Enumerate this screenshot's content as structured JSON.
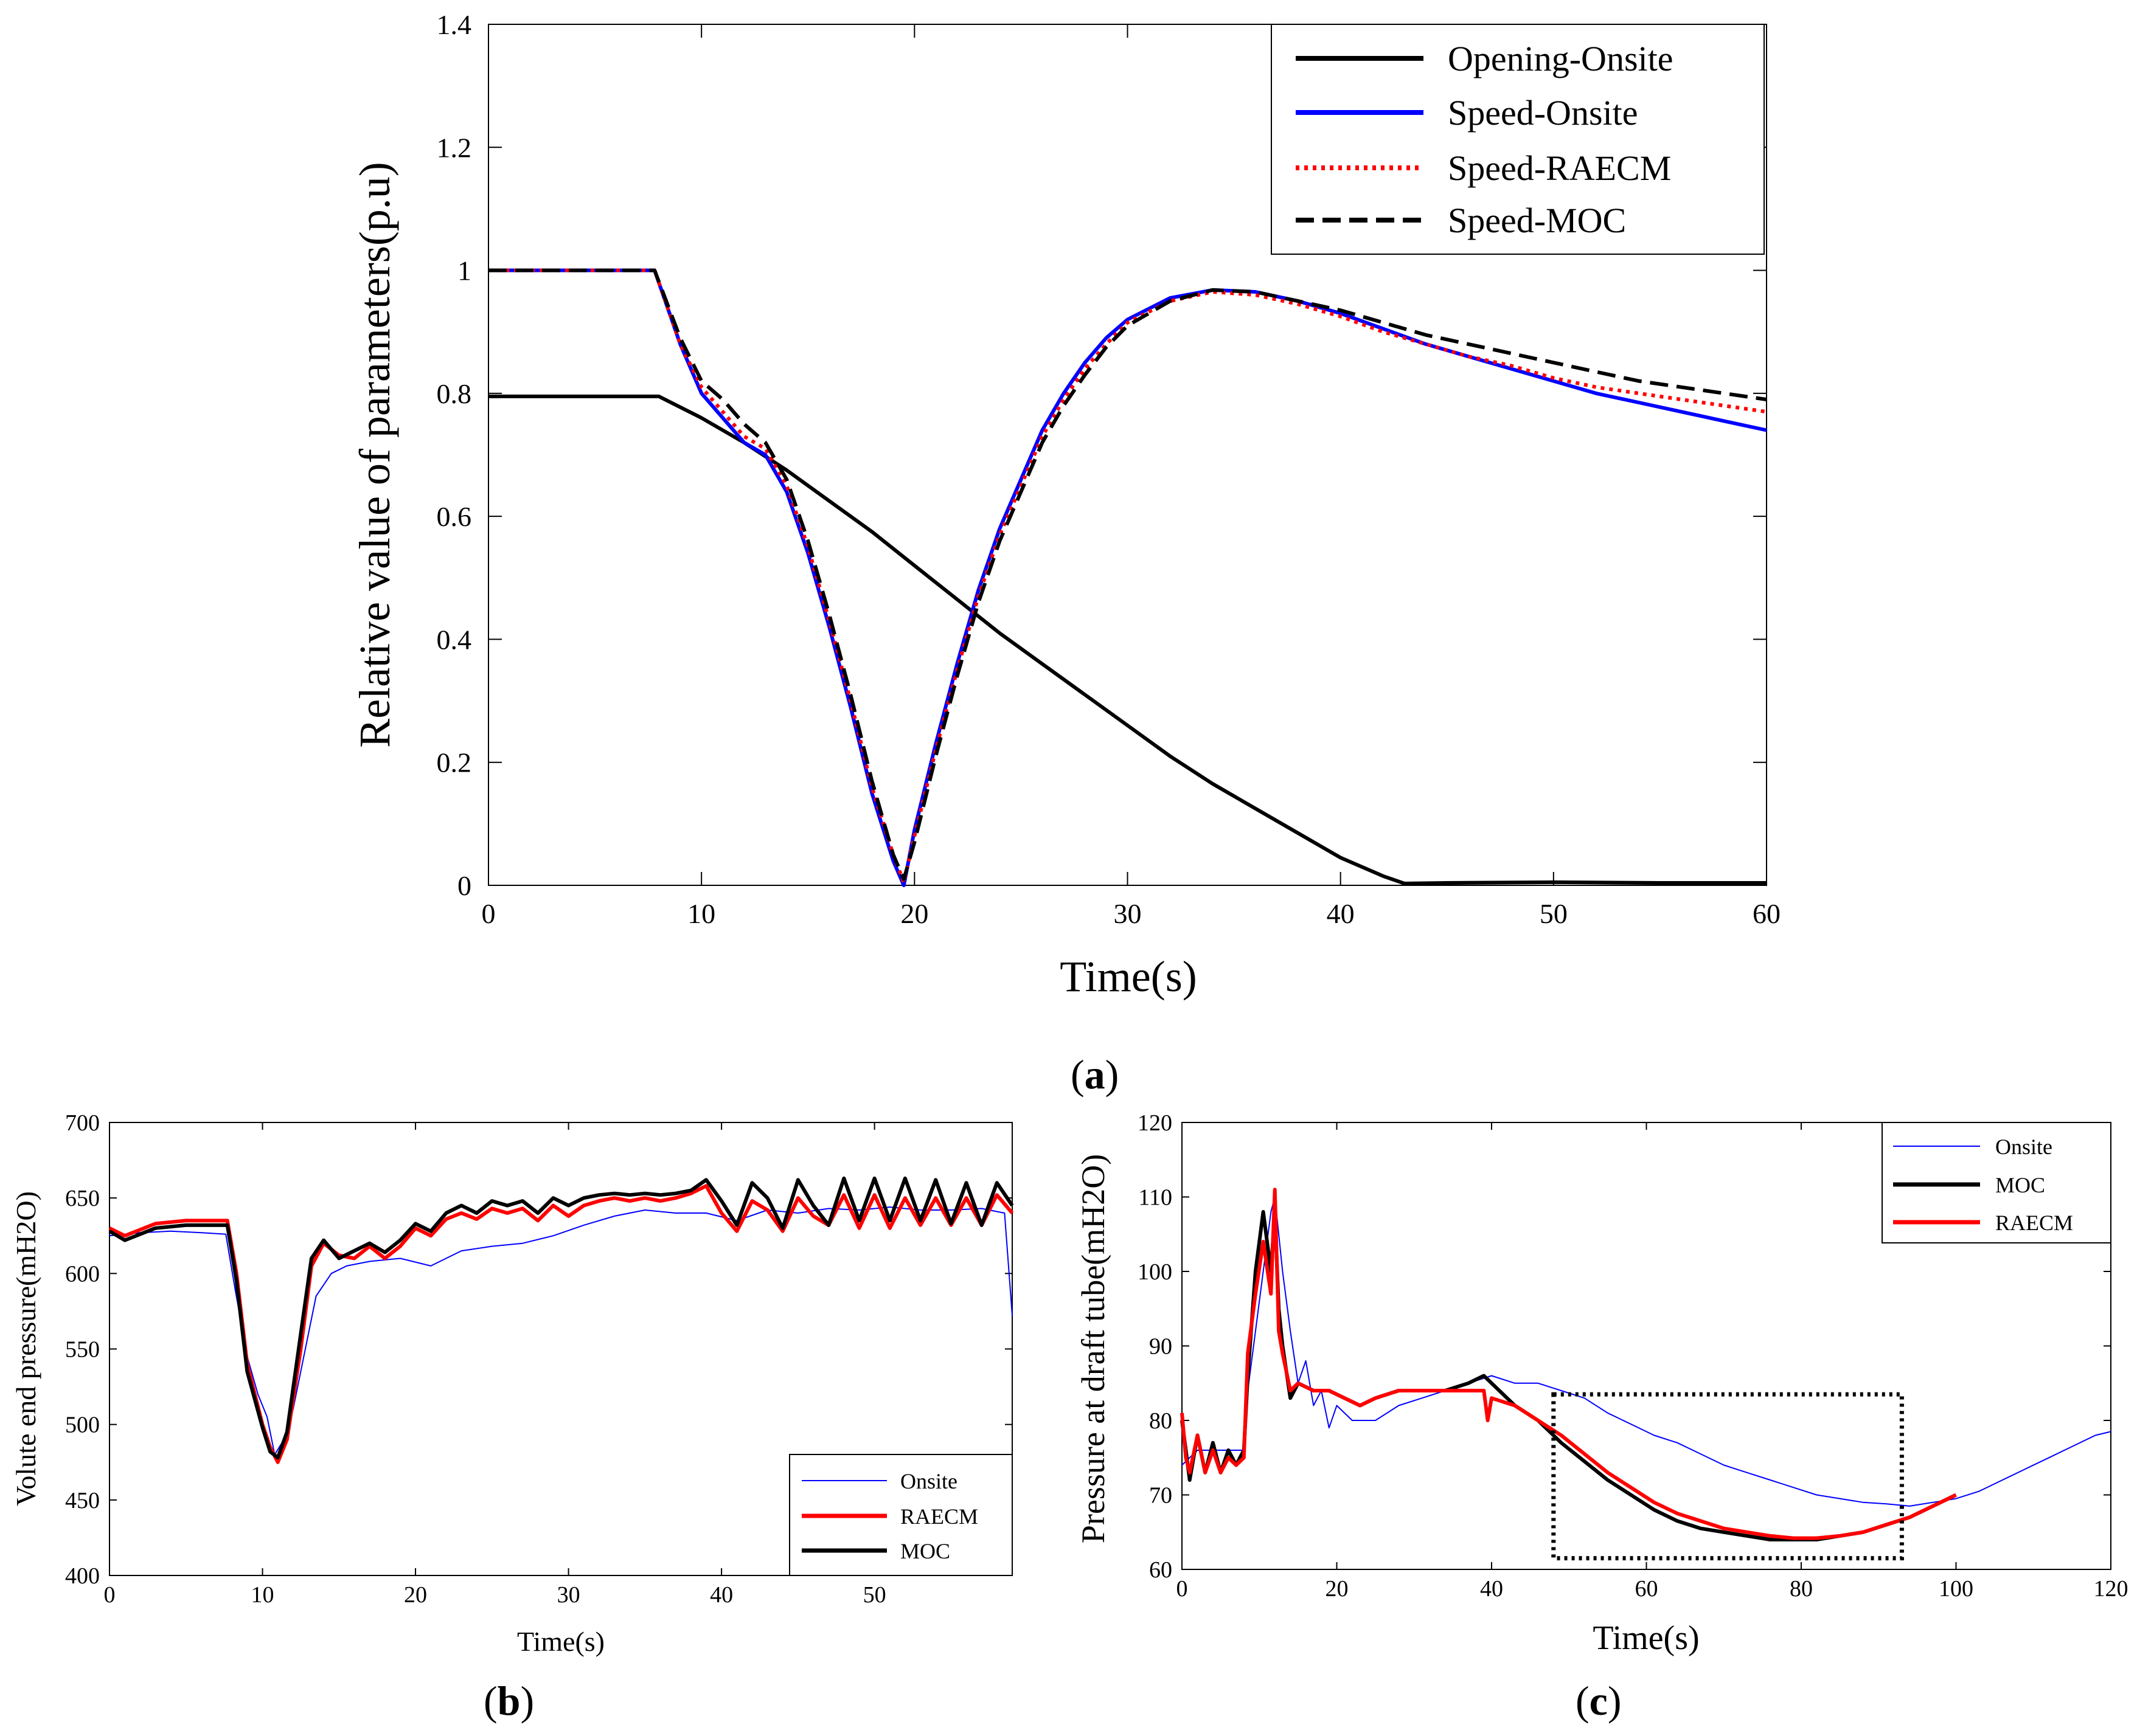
{
  "chart_data": [
    {
      "id": "a",
      "type": "line",
      "panel_label": "a",
      "xlabel": "Time(s)",
      "ylabel": "Relative value of parameters(p.u)",
      "xlim": [
        0,
        60
      ],
      "ylim": [
        0,
        1.4
      ],
      "xticks": [
        0,
        10,
        20,
        30,
        40,
        50,
        60
      ],
      "yticks": [
        0,
        0.2,
        0.4,
        0.6,
        0.8,
        1,
        1.2,
        1.4
      ],
      "legend_position": "top-right",
      "series": [
        {
          "name": "Opening-Onsite",
          "color": "#000000",
          "style": "solid",
          "x": [
            0,
            8,
            10,
            12,
            14,
            16,
            18,
            20,
            22,
            24,
            26,
            28,
            30,
            32,
            34,
            36,
            38,
            40,
            42,
            43,
            45,
            50,
            55,
            60
          ],
          "y": [
            0.795,
            0.795,
            0.76,
            0.72,
            0.675,
            0.625,
            0.575,
            0.52,
            0.465,
            0.41,
            0.36,
            0.31,
            0.26,
            0.21,
            0.165,
            0.125,
            0.085,
            0.045,
            0.015,
            0.003,
            0.004,
            0.005,
            0.004,
            0.004
          ]
        },
        {
          "name": "Speed-Onsite",
          "color": "#0000ff",
          "style": "solid",
          "x": [
            0,
            7.8,
            9,
            10,
            11,
            12,
            13,
            14,
            15,
            16,
            17,
            18,
            19,
            19.5,
            20,
            21,
            22,
            23,
            24,
            25,
            26,
            27,
            28,
            29,
            30,
            32,
            34,
            36,
            38,
            40,
            42,
            44,
            46,
            48,
            50,
            52,
            54,
            56,
            58,
            60
          ],
          "y": [
            1.0,
            1.0,
            0.88,
            0.8,
            0.76,
            0.72,
            0.7,
            0.64,
            0.54,
            0.42,
            0.29,
            0.15,
            0.04,
            0.0,
            0.09,
            0.23,
            0.36,
            0.48,
            0.58,
            0.66,
            0.74,
            0.8,
            0.85,
            0.89,
            0.92,
            0.955,
            0.968,
            0.965,
            0.95,
            0.93,
            0.905,
            0.88,
            0.86,
            0.84,
            0.82,
            0.8,
            0.785,
            0.77,
            0.755,
            0.74
          ]
        },
        {
          "name": "Speed-RAECM",
          "color": "#ff0000",
          "style": "dotted",
          "x": [
            0,
            7.8,
            9,
            10,
            11,
            12,
            13,
            14,
            15,
            16,
            17,
            18,
            19,
            19.5,
            20,
            21,
            22,
            23,
            24,
            25,
            26,
            27,
            28,
            29,
            30,
            32,
            34,
            36,
            38,
            40,
            42,
            44,
            46,
            48,
            50,
            52,
            54,
            56,
            58,
            60
          ],
          "y": [
            1.0,
            1.0,
            0.88,
            0.81,
            0.77,
            0.73,
            0.71,
            0.65,
            0.55,
            0.43,
            0.3,
            0.16,
            0.05,
            0.005,
            0.08,
            0.22,
            0.35,
            0.47,
            0.57,
            0.65,
            0.73,
            0.79,
            0.84,
            0.88,
            0.915,
            0.95,
            0.965,
            0.96,
            0.945,
            0.925,
            0.9,
            0.88,
            0.86,
            0.845,
            0.825,
            0.81,
            0.8,
            0.79,
            0.78,
            0.77
          ]
        },
        {
          "name": "Speed-MOC",
          "color": "#000000",
          "style": "dashed",
          "x": [
            0,
            7.8,
            9,
            10,
            11,
            12,
            13,
            14,
            15,
            16,
            17,
            18,
            19,
            19.5,
            20,
            21,
            22,
            23,
            24,
            25,
            26,
            27,
            28,
            29,
            30,
            32,
            34,
            36,
            38,
            40,
            42,
            44,
            46,
            48,
            50,
            52,
            54,
            56,
            58,
            60
          ],
          "y": [
            1.0,
            1.0,
            0.89,
            0.82,
            0.79,
            0.75,
            0.72,
            0.66,
            0.56,
            0.44,
            0.31,
            0.17,
            0.05,
            0.01,
            0.07,
            0.21,
            0.34,
            0.46,
            0.56,
            0.64,
            0.72,
            0.78,
            0.83,
            0.875,
            0.91,
            0.95,
            0.968,
            0.965,
            0.95,
            0.935,
            0.915,
            0.895,
            0.88,
            0.865,
            0.85,
            0.835,
            0.82,
            0.81,
            0.8,
            0.79
          ]
        }
      ]
    },
    {
      "id": "b",
      "type": "line",
      "panel_label": "b",
      "xlabel": "Time(s)",
      "ylabel": "Volute end pressure(mH2O)",
      "xlim": [
        0,
        59
      ],
      "ylim": [
        400,
        700
      ],
      "xticks": [
        0,
        10,
        20,
        30,
        40,
        50
      ],
      "yticks": [
        400,
        450,
        500,
        550,
        600,
        650,
        700
      ],
      "legend_position": "bottom-right",
      "series": [
        {
          "name": "Onsite",
          "color": "#0000ff",
          "style": "thin",
          "x": [
            0,
            2,
            4,
            6,
            7.6,
            8.2,
            9,
            9.7,
            10.3,
            10.8,
            11.4,
            12,
            12.7,
            13.5,
            14.5,
            15.5,
            17,
            19,
            21,
            23,
            25,
            27,
            29,
            31,
            33,
            35,
            37,
            39,
            41,
            43,
            45,
            47,
            49,
            51,
            53,
            55,
            57,
            58.5,
            59
          ],
          "y": [
            625,
            627,
            628,
            627,
            626,
            590,
            545,
            520,
            505,
            480,
            490,
            510,
            545,
            585,
            600,
            605,
            608,
            610,
            605,
            615,
            618,
            620,
            625,
            632,
            638,
            642,
            640,
            640,
            635,
            642,
            640,
            643,
            642,
            644,
            642,
            642,
            643,
            640,
            572
          ]
        },
        {
          "name": "RAECM",
          "color": "#ff0000",
          "style": "solid",
          "x": [
            0,
            1,
            3,
            5,
            7.7,
            8.3,
            9,
            10,
            10.5,
            11,
            11.6,
            12.5,
            13.2,
            14,
            15,
            16,
            17,
            18,
            19,
            20,
            21,
            22,
            23,
            24,
            25,
            26,
            27,
            28,
            29,
            30,
            31,
            32,
            33,
            34,
            35,
            36,
            37,
            38,
            39,
            40,
            41,
            42,
            43,
            44,
            45,
            46,
            47,
            48,
            49,
            50,
            51,
            52,
            53,
            54,
            55,
            56,
            57,
            58,
            59
          ],
          "y": [
            630,
            625,
            633,
            635,
            635,
            600,
            540,
            500,
            485,
            475,
            490,
            550,
            605,
            620,
            612,
            610,
            618,
            610,
            618,
            630,
            625,
            636,
            640,
            636,
            643,
            640,
            643,
            635,
            645,
            638,
            645,
            648,
            650,
            648,
            650,
            648,
            650,
            653,
            658,
            640,
            628,
            648,
            642,
            628,
            650,
            638,
            632,
            652,
            630,
            652,
            630,
            650,
            632,
            650,
            632,
            650,
            632,
            652,
            640
          ]
        },
        {
          "name": "MOC",
          "color": "#000000",
          "style": "solid",
          "x": [
            0,
            1,
            3,
            5,
            7.7,
            8.3,
            9,
            10,
            10.5,
            11,
            11.6,
            12.5,
            13.2,
            14,
            15,
            16,
            17,
            18,
            19,
            20,
            21,
            22,
            23,
            24,
            25,
            26,
            27,
            28,
            29,
            30,
            31,
            32,
            33,
            34,
            35,
            36,
            37,
            38,
            39,
            40,
            41,
            42,
            43,
            44,
            45,
            46,
            47,
            48,
            49,
            50,
            51,
            52,
            53,
            54,
            55,
            56,
            57,
            58,
            59
          ],
          "y": [
            628,
            622,
            630,
            632,
            632,
            595,
            535,
            498,
            482,
            478,
            495,
            560,
            610,
            622,
            610,
            615,
            620,
            614,
            622,
            633,
            628,
            640,
            645,
            640,
            648,
            645,
            648,
            640,
            650,
            645,
            650,
            652,
            653,
            652,
            653,
            652,
            653,
            655,
            662,
            648,
            632,
            660,
            650,
            630,
            662,
            645,
            632,
            663,
            635,
            663,
            635,
            663,
            635,
            662,
            633,
            660,
            632,
            660,
            645
          ]
        }
      ]
    },
    {
      "id": "c",
      "type": "line",
      "panel_label": "c",
      "xlabel": "Time(s)",
      "ylabel": "Pressure at draft tube(mH2O)",
      "xlim": [
        0,
        120
      ],
      "ylim": [
        60,
        120
      ],
      "xticks": [
        0,
        20,
        40,
        60,
        80,
        100,
        120
      ],
      "yticks": [
        60,
        70,
        80,
        90,
        100,
        110,
        120
      ],
      "legend_position": "top-right",
      "highlight_box": {
        "x": [
          48,
          93
        ],
        "y": [
          61.5,
          83.5
        ]
      },
      "series": [
        {
          "name": "Onsite",
          "color": "#0000ff",
          "style": "thin",
          "x": [
            0,
            2,
            4,
            6,
            8,
            8.5,
            9.5,
            10.5,
            11.5,
            12,
            13,
            14,
            15,
            16,
            17,
            18,
            19,
            20,
            22,
            25,
            28,
            31,
            34,
            37,
            40,
            43,
            46,
            49,
            52,
            55,
            58,
            61,
            64,
            67,
            70,
            73,
            76,
            79,
            82,
            85,
            88,
            91,
            94,
            97,
            100,
            103,
            106,
            109,
            112,
            115,
            118,
            120
          ],
          "y": [
            74,
            76,
            76,
            76,
            76,
            84,
            92,
            100,
            108,
            110,
            100,
            92,
            85,
            88,
            82,
            84,
            79,
            82,
            80,
            80,
            82,
            83,
            84,
            85,
            86,
            85,
            85,
            84,
            83,
            81,
            79.5,
            78,
            77,
            75.5,
            74,
            73,
            72,
            71,
            70,
            69.5,
            69,
            68.8,
            68.5,
            69,
            69.5,
            70.5,
            72,
            73.5,
            75,
            76.5,
            78,
            78.5
          ]
        },
        {
          "name": "MOC",
          "color": "#000000",
          "style": "solid",
          "x": [
            0,
            0.5,
            1,
            2,
            3,
            4,
            5,
            6,
            7,
            8,
            8.5,
            9.5,
            10.5,
            11.5,
            12,
            12.5,
            13,
            14,
            15,
            17,
            19,
            21,
            23,
            25,
            28,
            31,
            34,
            37,
            39,
            40,
            43,
            46,
            49,
            52,
            55,
            58,
            61,
            64,
            67,
            70,
            73,
            76,
            79,
            82,
            85,
            88,
            91,
            94,
            97,
            100
          ],
          "y": [
            80,
            76,
            72,
            78,
            73,
            77,
            73,
            76,
            74,
            76,
            86,
            100,
            108,
            100,
            108,
            95,
            90,
            83,
            85,
            84,
            84,
            83,
            82,
            83,
            84,
            84,
            84,
            85,
            86,
            85,
            82,
            80,
            77,
            74.5,
            72,
            70,
            68,
            66.5,
            65.5,
            65,
            64.5,
            64,
            64,
            64,
            64.5,
            65,
            66,
            67,
            68.5,
            70
          ]
        },
        {
          "name": "RAECM",
          "color": "#ff0000",
          "style": "solid",
          "x": [
            0,
            0.5,
            1,
            2,
            3,
            4,
            5,
            6,
            7,
            8,
            8.5,
            9.5,
            10.5,
            11.5,
            12,
            12.5,
            13,
            14,
            15,
            17,
            19,
            21,
            23,
            25,
            28,
            31,
            34,
            37,
            39,
            39.5,
            40,
            43,
            46,
            49,
            52,
            55,
            58,
            61,
            64,
            67,
            70,
            73,
            76,
            79,
            82,
            85,
            88,
            91,
            94,
            97,
            100
          ],
          "y": [
            81,
            75,
            73,
            78,
            73,
            76,
            73,
            75,
            74,
            75,
            89,
            97,
            104,
            97,
            111,
            92,
            89,
            84,
            85,
            84,
            84,
            83,
            82,
            83,
            84,
            84,
            84,
            84,
            84,
            80,
            83,
            82,
            80,
            78,
            75.5,
            73,
            71,
            69,
            67.5,
            66.5,
            65.5,
            65,
            64.5,
            64.2,
            64.2,
            64.5,
            65,
            66,
            67,
            68.5,
            70
          ]
        }
      ]
    }
  ]
}
